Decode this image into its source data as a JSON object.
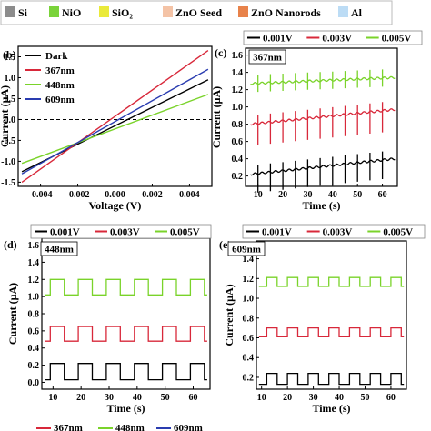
{
  "material_legend": {
    "items": [
      {
        "label": "Si",
        "color": "#8c8c8c"
      },
      {
        "label": "NiO",
        "color": "#7ad33a"
      },
      {
        "label": "SiO₂",
        "color": "#eaea3a"
      },
      {
        "label": "ZnO Seed",
        "color": "#f4c3a6"
      },
      {
        "label": "ZnO Nanorods",
        "color": "#e8824a"
      },
      {
        "label": "Al",
        "color": "#bcdcf5"
      }
    ]
  },
  "colors": {
    "black": "#000000",
    "red": "#d8283a",
    "green": "#7ad32a",
    "blue": "#2a3cb0"
  },
  "chart_data": [
    {
      "id": "b",
      "panel_label": "(b)",
      "type": "line",
      "xlabel": "Voltage (V)",
      "ylabel": "Current (μA)",
      "xlim": [
        -0.0052,
        0.0052
      ],
      "ylim": [
        -1.6,
        1.75
      ],
      "xticks": [
        -0.004,
        -0.002,
        0.0,
        0.002,
        0.004
      ],
      "xtick_labels": [
        "-0.004",
        "-0.002",
        "0.000",
        "0.002",
        "0.004"
      ],
      "yticks": [
        -1.5,
        -1.0,
        -0.5,
        0.0,
        0.5,
        1.0,
        1.5
      ],
      "ytick_labels": [
        "-1.5",
        "-1.0",
        "-0.5",
        "0.0",
        "0.5",
        "1.0",
        "1.5"
      ],
      "legend_position": "top-left",
      "series": [
        {
          "name": "Dark",
          "color": "#000000",
          "x": [
            -0.005,
            0.005
          ],
          "y": [
            -1.25,
            0.95
          ]
        },
        {
          "name": "367nm",
          "color": "#d8283a",
          "x": [
            -0.005,
            0.005
          ],
          "y": [
            -1.5,
            1.65
          ]
        },
        {
          "name": "448nm",
          "color": "#7ad32a",
          "x": [
            -0.005,
            0.005
          ],
          "y": [
            -1.05,
            0.6
          ]
        },
        {
          "name": "609nm",
          "color": "#2a3cb0",
          "x": [
            -0.005,
            0.005
          ],
          "y": [
            -1.3,
            1.2
          ]
        }
      ]
    },
    {
      "id": "c",
      "panel_label": "(c)",
      "wavelength": "367nm",
      "type": "line",
      "xlabel": "Time (s)",
      "ylabel": "Current (μA)",
      "xlim": [
        5,
        66
      ],
      "ylim": [
        0.08,
        1.68
      ],
      "xticks": [
        10,
        20,
        30,
        40,
        50,
        60
      ],
      "yticks": [
        0.2,
        0.4,
        0.6,
        0.8,
        1.0,
        1.2,
        1.4,
        1.6
      ],
      "ytick_labels": [
        "0.2",
        "0.4",
        "0.6",
        "0.8",
        "1.0",
        "1.2",
        "1.4",
        "1.6"
      ],
      "legend_position": "top",
      "series": [
        {
          "name": "0.001V",
          "color": "#000000",
          "kind": "spikes",
          "t0": 7,
          "t1": 65,
          "base_start": 0.22,
          "base_end": 0.4,
          "period": 5,
          "spike_up": 0.1,
          "spike_down": 0.22
        },
        {
          "name": "0.003V",
          "color": "#d8283a",
          "kind": "spikes",
          "t0": 7,
          "t1": 65,
          "base_start": 0.8,
          "base_end": 0.97,
          "period": 5,
          "spike_up": 0.1,
          "spike_down": 0.25
        },
        {
          "name": "0.005V",
          "color": "#7ad32a",
          "kind": "spikes",
          "t0": 7,
          "t1": 65,
          "base_start": 1.27,
          "base_end": 1.34,
          "period": 5,
          "spike_up": 0.1,
          "spike_down": 0.1
        }
      ]
    },
    {
      "id": "d",
      "panel_label": "(d)",
      "wavelength": "448nm",
      "type": "line",
      "xlabel": "Time (s)",
      "ylabel": "Current (μA)",
      "xlim": [
        6,
        66
      ],
      "ylim": [
        -0.08,
        1.68
      ],
      "xticks": [
        10,
        20,
        30,
        40,
        50,
        60
      ],
      "yticks": [
        0.0,
        0.2,
        0.4,
        0.6,
        0.8,
        1.0,
        1.2,
        1.4,
        1.6
      ],
      "ytick_labels": [
        "0.0",
        "0.2",
        "0.4",
        "0.6",
        "0.8",
        "1.0",
        "1.2",
        "1.4",
        "1.6"
      ],
      "legend_position": "top",
      "series": [
        {
          "name": "0.001V",
          "color": "#000000",
          "kind": "square",
          "t0": 7,
          "t1": 65,
          "period": 10,
          "duty_start": 2,
          "on": 0.22,
          "off": 0.03
        },
        {
          "name": "0.003V",
          "color": "#d8283a",
          "kind": "square",
          "t0": 7,
          "t1": 65,
          "period": 10,
          "duty_start": 2,
          "on": 0.65,
          "off": 0.48
        },
        {
          "name": "0.005V",
          "color": "#7ad32a",
          "kind": "square",
          "t0": 7,
          "t1": 65,
          "period": 10,
          "duty_start": 2,
          "on": 1.2,
          "off": 1.02
        }
      ]
    },
    {
      "id": "e",
      "panel_label": "(e)",
      "wavelength": "609nm",
      "type": "line",
      "xlabel": "Time (s)",
      "ylabel": "Current (μA)",
      "xlim": [
        8,
        66
      ],
      "ylim": [
        0.08,
        1.58
      ],
      "xticks": [
        10,
        20,
        30,
        40,
        50,
        60
      ],
      "yticks": [
        0.2,
        0.4,
        0.6,
        0.8,
        1.0,
        1.2,
        1.4
      ],
      "ytick_labels": [
        "0.2",
        "0.4",
        "0.6",
        "0.8",
        "1.0",
        "1.2",
        "1.4"
      ],
      "legend_position": "top",
      "series": [
        {
          "name": "0.001V",
          "color": "#000000",
          "kind": "square",
          "t0": 9,
          "t1": 65,
          "period": 8,
          "duty_start": 3,
          "on": 0.24,
          "off": 0.13
        },
        {
          "name": "0.003V",
          "color": "#d8283a",
          "kind": "square",
          "t0": 9,
          "t1": 65,
          "period": 8,
          "duty_start": 3,
          "on": 0.7,
          "off": 0.61
        },
        {
          "name": "0.005V",
          "color": "#7ad32a",
          "kind": "square",
          "t0": 9,
          "t1": 65,
          "period": 8,
          "duty_start": 3,
          "on": 1.21,
          "off": 1.12
        }
      ]
    }
  ],
  "bottom_legend": [
    "367nm",
    "448nm",
    "609nm"
  ]
}
